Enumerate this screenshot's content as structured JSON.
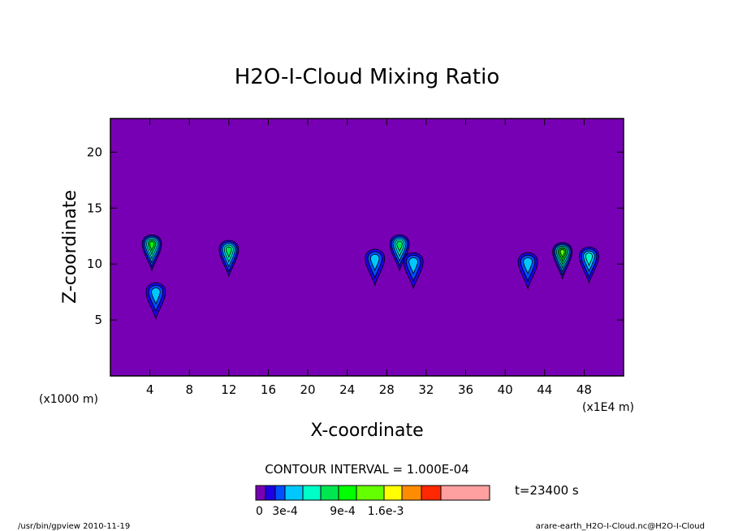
{
  "chart_data": {
    "type": "heatmap",
    "title": "H2O-I-Cloud Mixing Ratio",
    "xlabel": "X-coordinate",
    "ylabel": "Z-coordinate",
    "x_unit_left": "(x1000 m)",
    "x_unit_right": "(x1E4 m)",
    "xlim": [
      0,
      52
    ],
    "ylim": [
      0,
      23
    ],
    "xticks": [
      4,
      8,
      12,
      16,
      20,
      24,
      28,
      32,
      36,
      40,
      44,
      48
    ],
    "yticks": [
      5,
      10,
      15,
      20
    ],
    "background_color": "#7800b4",
    "contour_interval": "CONTOUR INTERVAL = 1.000E-04",
    "time_label": "t=23400 s",
    "footer_left": "/usr/bin/gpview   2010-11-19",
    "footer_right": "arare-earth_H2O-I-Cloud.nc@H2O-I-Cloud",
    "colorbar": {
      "colors": [
        "#7800b4",
        "#1e00e6",
        "#0050ff",
        "#00c8ff",
        "#00ffc8",
        "#00e650",
        "#00ff00",
        "#64ff00",
        "#ffff00",
        "#ff8c00",
        "#ff2800",
        "#ffa0a0"
      ],
      "labels": [
        "0",
        "3e-4",
        "9e-4",
        "1.6e-3"
      ]
    },
    "cells": [
      {
        "x": 4.2,
        "z": 11.8,
        "peak": 6
      },
      {
        "x": 4.6,
        "z": 7.5,
        "peak": 3
      },
      {
        "x": 12.0,
        "z": 11.3,
        "peak": 5
      },
      {
        "x": 26.8,
        "z": 10.5,
        "peak": 3
      },
      {
        "x": 29.3,
        "z": 11.8,
        "peak": 5
      },
      {
        "x": 30.7,
        "z": 10.2,
        "peak": 3
      },
      {
        "x": 42.3,
        "z": 10.2,
        "peak": 3
      },
      {
        "x": 45.8,
        "z": 11.1,
        "peak": 7
      },
      {
        "x": 48.5,
        "z": 10.7,
        "peak": 4
      }
    ]
  }
}
